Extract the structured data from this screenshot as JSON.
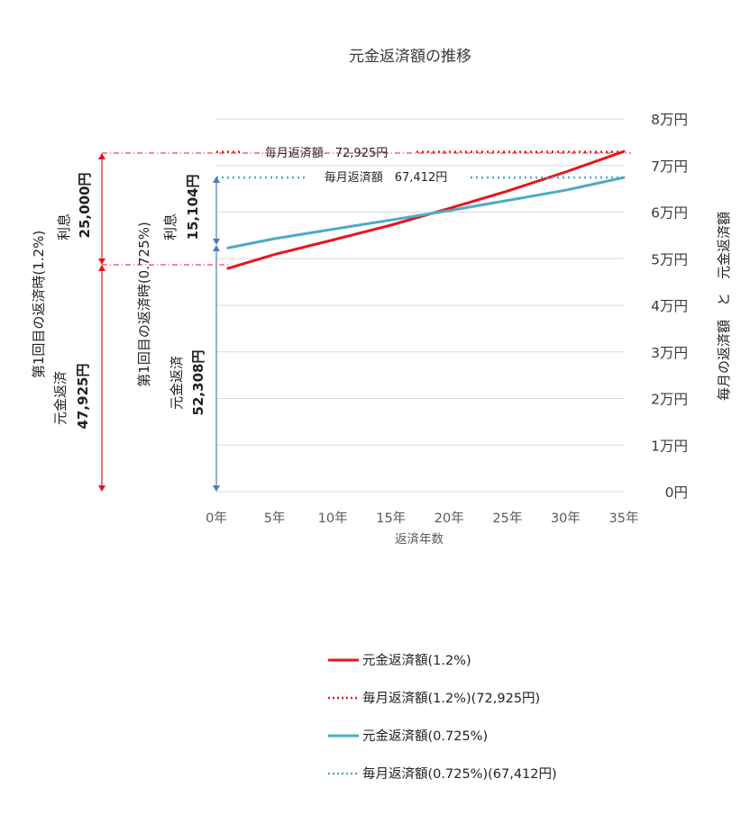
{
  "chart_data": {
    "type": "line",
    "title": "元金返済額の推移",
    "xlabel": "返済年数",
    "ylabel": "毎月の返済額　と　元金返済額",
    "xlim": [
      0,
      35
    ],
    "ylim": [
      0,
      80000
    ],
    "x_ticks": [
      "0年",
      "5年",
      "10年",
      "15年",
      "20年",
      "25年",
      "30年",
      "35年"
    ],
    "y_ticks": [
      "0円",
      "1万円",
      "2万円",
      "3万円",
      "4万円",
      "5万円",
      "6万円",
      "7万円",
      "8万円"
    ],
    "grid": true,
    "legend_position": "bottom",
    "series": [
      {
        "name": "元金返済額(1.2%)",
        "style": "solid",
        "color": "#e8141c",
        "x": [
          1,
          5,
          10,
          15,
          20,
          25,
          30,
          35
        ],
        "values": [
          47925,
          50900,
          54000,
          57200,
          60800,
          64500,
          68600,
          73000
        ]
      },
      {
        "name": "毎月返済額(1.2%)(72,925円)",
        "style": "dotted",
        "color": "#e8141c",
        "x": [
          0,
          35
        ],
        "values": [
          72925,
          72925
        ]
      },
      {
        "name": "元金返済額(0.725%)",
        "style": "solid",
        "color": "#4bacc6",
        "x": [
          1,
          5,
          10,
          15,
          20,
          25,
          30,
          35
        ],
        "values": [
          52308,
          54300,
          56300,
          58300,
          60300,
          62500,
          64700,
          67412
        ]
      },
      {
        "name": "毎月返済額(0.725%)(67,412円)",
        "style": "dotted",
        "color": "#4bacc6",
        "x": [
          0,
          35
        ],
        "values": [
          67412,
          67412
        ]
      }
    ],
    "annotations": {
      "red_line_label": "毎月返済額　72,925円",
      "blue_line_label": "毎月返済額　67,412円",
      "red_group": {
        "heading": "第1回目の返済時(1.2%)",
        "interest_label": "利息",
        "interest_value": "25,000円",
        "principal_label": "元金返済",
        "principal_value": "47,925円"
      },
      "blue_group": {
        "heading": "第1回目の返済時(0.725%)",
        "interest_label": "利息",
        "interest_value": "15,104円",
        "principal_label": "元金返済",
        "principal_value": "52,308円"
      }
    }
  }
}
